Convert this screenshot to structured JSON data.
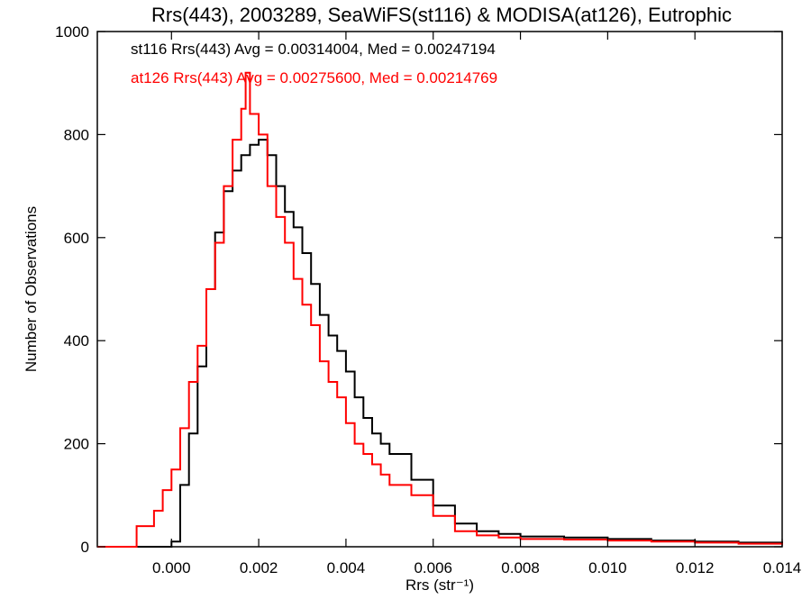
{
  "chart_data": {
    "type": "line",
    "step": true,
    "title": "Rrs(443), 2003289, SeaWiFS(st116) & MODISA(at126), Eutrophic",
    "xlabel": "Rrs (str⁻¹)",
    "ylabel": "Number of Observations",
    "xlim": [
      -0.0017,
      0.014
    ],
    "ylim": [
      0,
      1000
    ],
    "xticks": [
      "0.000",
      "0.002",
      "0.004",
      "0.006",
      "0.008",
      "0.010",
      "0.012",
      "0.014"
    ],
    "xtick_values": [
      0.0,
      0.002,
      0.004,
      0.006,
      0.008,
      0.01,
      0.012,
      0.014
    ],
    "yticks": [
      "0",
      "200",
      "400",
      "600",
      "800",
      "1000"
    ],
    "ytick_values": [
      0,
      200,
      400,
      600,
      800,
      1000
    ],
    "grid": false,
    "legend": "top-left",
    "annotations": [
      {
        "text": "st116 Rrs(443) Avg = 0.00314004, Med = 0.00247194",
        "color": "#000000"
      },
      {
        "text": "at126 Rrs(443) Avg = 0.00275600, Med = 0.00214769",
        "color": "#ff0000"
      }
    ],
    "series": [
      {
        "color": "#000000",
        "x": [
          -0.0017,
          -0.0002,
          0.0,
          0.0002,
          0.0004,
          0.0006,
          0.0008,
          0.001,
          0.0012,
          0.0014,
          0.0016,
          0.0018,
          0.002,
          0.0022,
          0.0024,
          0.0026,
          0.0028,
          0.003,
          0.0032,
          0.0034,
          0.0036,
          0.0038,
          0.004,
          0.0042,
          0.0044,
          0.0046,
          0.0048,
          0.005,
          0.0055,
          0.006,
          0.0065,
          0.007,
          0.0075,
          0.008,
          0.009,
          0.01,
          0.011,
          0.012,
          0.013,
          0.014
        ],
        "y": [
          0,
          0,
          10,
          120,
          220,
          350,
          500,
          610,
          690,
          730,
          760,
          780,
          790,
          760,
          700,
          650,
          620,
          570,
          510,
          450,
          410,
          380,
          340,
          290,
          250,
          220,
          200,
          180,
          130,
          80,
          45,
          30,
          25,
          20,
          18,
          15,
          12,
          10,
          8,
          5
        ]
      },
      {
        "color": "#ff0000",
        "x": [
          -0.0017,
          -0.0012,
          -0.0008,
          -0.0004,
          -0.0002,
          0.0,
          0.0002,
          0.0004,
          0.0006,
          0.0008,
          0.001,
          0.0012,
          0.0014,
          0.0016,
          0.0017,
          0.0018,
          0.002,
          0.0022,
          0.0024,
          0.0026,
          0.0028,
          0.003,
          0.0032,
          0.0034,
          0.0036,
          0.0038,
          0.004,
          0.0042,
          0.0044,
          0.0046,
          0.0048,
          0.005,
          0.0055,
          0.006,
          0.0065,
          0.007,
          0.0075,
          0.008,
          0.009,
          0.01,
          0.011,
          0.012,
          0.013,
          0.014
        ],
        "y": [
          0,
          0,
          40,
          70,
          110,
          150,
          230,
          320,
          390,
          500,
          590,
          700,
          790,
          850,
          920,
          840,
          800,
          700,
          640,
          590,
          520,
          470,
          430,
          360,
          320,
          290,
          240,
          200,
          180,
          160,
          140,
          120,
          100,
          60,
          30,
          22,
          18,
          15,
          14,
          12,
          10,
          8,
          6,
          4
        ]
      }
    ]
  }
}
